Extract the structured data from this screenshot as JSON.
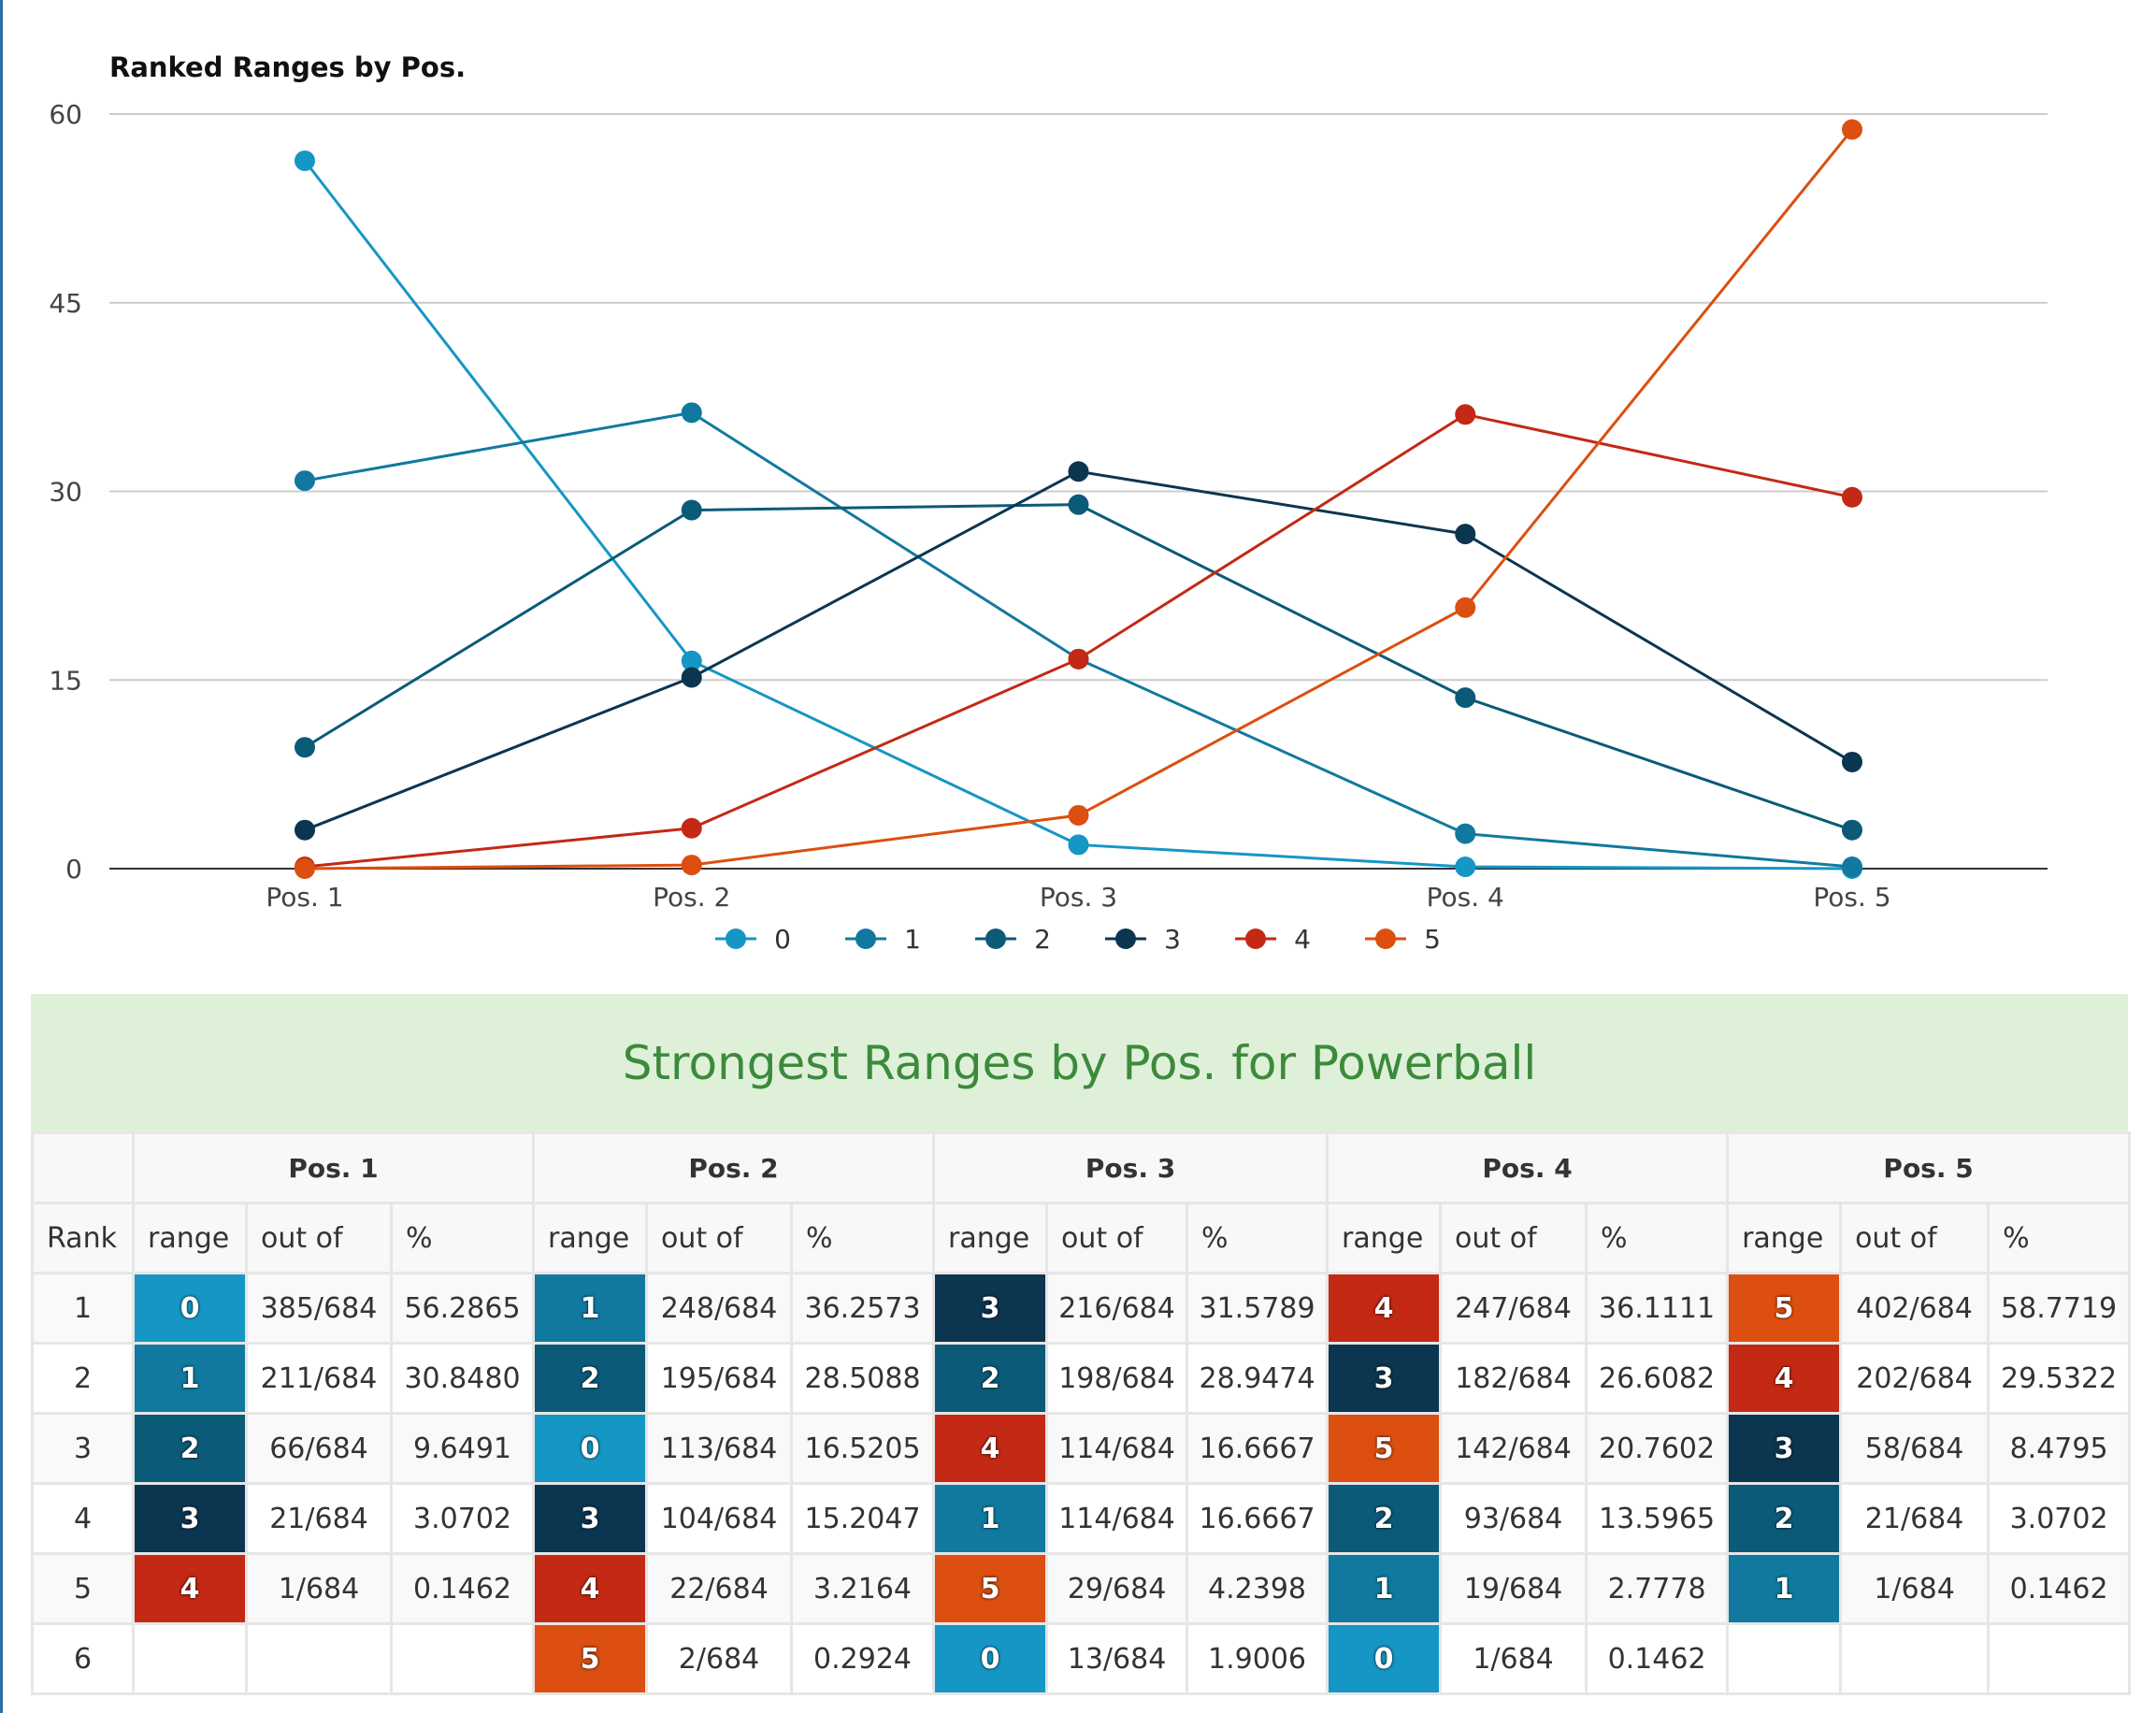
{
  "colors": {
    "0": "#1696c4",
    "1": "#11799f",
    "2": "#0b5a78",
    "3": "#0c3550",
    "4": "#c32914",
    "5": "#dc4f10"
  },
  "chart_data": {
    "type": "line",
    "title": "Ranked Ranges by Pos.",
    "categories": [
      "Pos. 1",
      "Pos. 2",
      "Pos. 3",
      "Pos. 4",
      "Pos. 5"
    ],
    "ylim": [
      0,
      60
    ],
    "yticks": [
      "0",
      "15",
      "30",
      "45",
      "60"
    ],
    "series": [
      {
        "name": "0",
        "color": "#1696c4",
        "values": [
          56.2865,
          16.5205,
          1.9006,
          0.1462,
          0
        ]
      },
      {
        "name": "1",
        "color": "#11799f",
        "values": [
          30.848,
          36.2573,
          16.6667,
          2.7778,
          0.1462
        ]
      },
      {
        "name": "2",
        "color": "#0b5a78",
        "values": [
          9.6491,
          28.5088,
          28.9474,
          13.5965,
          3.0702
        ]
      },
      {
        "name": "3",
        "color": "#0c3550",
        "values": [
          3.0702,
          15.2047,
          31.5789,
          26.6082,
          8.4795
        ]
      },
      {
        "name": "4",
        "color": "#c32914",
        "values": [
          0.1462,
          3.2164,
          16.6667,
          36.1111,
          29.5322
        ]
      },
      {
        "name": "5",
        "color": "#dc4f10",
        "values": [
          0,
          0.2924,
          4.2398,
          20.7602,
          58.7719
        ]
      }
    ],
    "legend": "bottom"
  },
  "table": {
    "title": "Strongest Ranges by Pos. for Powerball",
    "rank_label": "Rank",
    "positions": [
      "Pos. 1",
      "Pos. 2",
      "Pos. 3",
      "Pos. 4",
      "Pos. 5"
    ],
    "sub_headers": [
      "range",
      "out of",
      "%"
    ],
    "rows": [
      {
        "rank": "1",
        "cells": [
          [
            "0",
            "385/684",
            "56.2865"
          ],
          [
            "1",
            "248/684",
            "36.2573"
          ],
          [
            "3",
            "216/684",
            "31.5789"
          ],
          [
            "4",
            "247/684",
            "36.1111"
          ],
          [
            "5",
            "402/684",
            "58.7719"
          ]
        ]
      },
      {
        "rank": "2",
        "cells": [
          [
            "1",
            "211/684",
            "30.8480"
          ],
          [
            "2",
            "195/684",
            "28.5088"
          ],
          [
            "2",
            "198/684",
            "28.9474"
          ],
          [
            "3",
            "182/684",
            "26.6082"
          ],
          [
            "4",
            "202/684",
            "29.5322"
          ]
        ]
      },
      {
        "rank": "3",
        "cells": [
          [
            "2",
            "66/684",
            "9.6491"
          ],
          [
            "0",
            "113/684",
            "16.5205"
          ],
          [
            "4",
            "114/684",
            "16.6667"
          ],
          [
            "5",
            "142/684",
            "20.7602"
          ],
          [
            "3",
            "58/684",
            "8.4795"
          ]
        ]
      },
      {
        "rank": "4",
        "cells": [
          [
            "3",
            "21/684",
            "3.0702"
          ],
          [
            "3",
            "104/684",
            "15.2047"
          ],
          [
            "1",
            "114/684",
            "16.6667"
          ],
          [
            "2",
            "93/684",
            "13.5965"
          ],
          [
            "2",
            "21/684",
            "3.0702"
          ]
        ]
      },
      {
        "rank": "5",
        "cells": [
          [
            "4",
            "1/684",
            "0.1462"
          ],
          [
            "4",
            "22/684",
            "3.2164"
          ],
          [
            "5",
            "29/684",
            "4.2398"
          ],
          [
            "1",
            "19/684",
            "2.7778"
          ],
          [
            "1",
            "1/684",
            "0.1462"
          ]
        ]
      },
      {
        "rank": "6",
        "cells": [
          [
            "",
            "",
            ""
          ],
          [
            "5",
            "2/684",
            "0.2924"
          ],
          [
            "0",
            "13/684",
            "1.9006"
          ],
          [
            "0",
            "1/684",
            "0.1462"
          ],
          [
            "",
            "",
            ""
          ]
        ]
      }
    ]
  }
}
